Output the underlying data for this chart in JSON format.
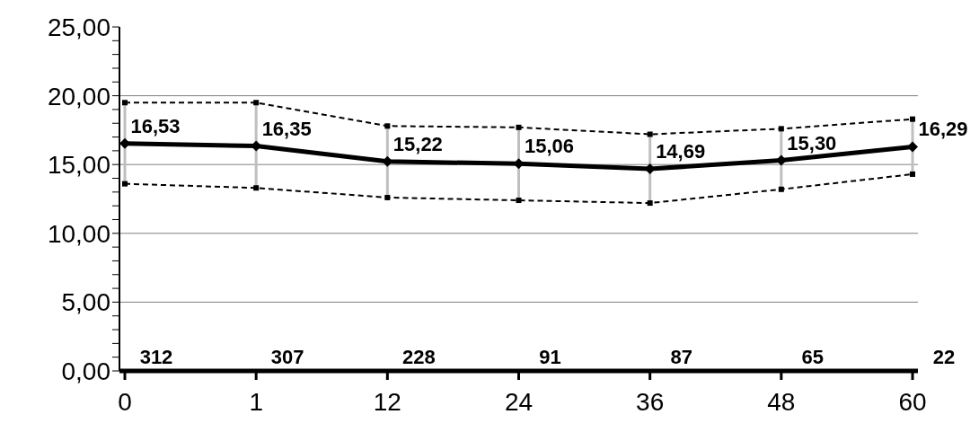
{
  "chart_data": {
    "type": "line",
    "categories": [
      "0",
      "1",
      "12",
      "24",
      "36",
      "48",
      "60"
    ],
    "series": [
      {
        "color": "#000000",
        "line_style": "dashed",
        "marker": "square",
        "values": [
          19.5,
          19.5,
          17.8,
          17.7,
          17.2,
          17.6,
          18.3
        ]
      },
      {
        "color": "#000000",
        "line_style": "dashed",
        "marker": "square",
        "values": [
          13.6,
          13.3,
          12.6,
          12.4,
          12.2,
          13.2,
          14.3
        ]
      },
      {
        "color": "#000000",
        "line_style": "solid",
        "marker": "diamond",
        "values": [
          16.53,
          16.35,
          15.22,
          15.06,
          14.69,
          15.3,
          16.29
        ],
        "value_labels": [
          "16,53",
          "16,35",
          "15,22",
          "15,06",
          "14,69",
          "15,30",
          "16,29"
        ],
        "errors": [
          [
            13.6,
            19.5
          ],
          [
            13.3,
            19.5
          ],
          [
            12.6,
            17.8
          ],
          [
            12.4,
            17.7
          ],
          [
            12.2,
            17.2
          ],
          [
            13.2,
            17.6
          ],
          [
            14.3,
            18.3
          ]
        ]
      }
    ],
    "ylim": [
      0,
      25
    ],
    "yticks": [
      {
        "value": 0,
        "label": "0,00"
      },
      {
        "value": 1,
        "label": null
      },
      {
        "value": 2,
        "label": null
      },
      {
        "value": 3,
        "label": null
      },
      {
        "value": 4,
        "label": null
      },
      {
        "value": 5,
        "label": "5,00"
      },
      {
        "value": 6,
        "label": null
      },
      {
        "value": 7,
        "label": null
      },
      {
        "value": 8,
        "label": null
      },
      {
        "value": 9,
        "label": null
      },
      {
        "value": 10,
        "label": "10,00"
      },
      {
        "value": 11,
        "label": null
      },
      {
        "value": 12,
        "label": null
      },
      {
        "value": 13,
        "label": null
      },
      {
        "value": 14,
        "label": null
      },
      {
        "value": 15,
        "label": "15,00"
      },
      {
        "value": 16,
        "label": null
      },
      {
        "value": 17,
        "label": null
      },
      {
        "value": 18,
        "label": null
      },
      {
        "value": 19,
        "label": null
      },
      {
        "value": 20,
        "label": "20,00"
      },
      {
        "value": 21,
        "label": null
      },
      {
        "value": 22,
        "label": null
      },
      {
        "value": 23,
        "label": null
      },
      {
        "value": 24,
        "label": null
      },
      {
        "value": 25,
        "label": "25,00"
      }
    ],
    "grid": "y",
    "annotations": [
      "312",
      "307",
      "228",
      "91",
      "87",
      "65",
      "22"
    ]
  }
}
